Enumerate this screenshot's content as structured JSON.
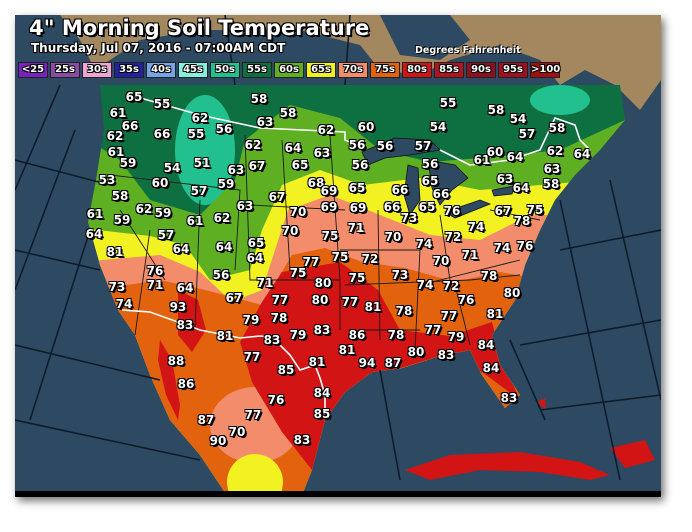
{
  "header": {
    "title": "4\" Morning Soil Temperature",
    "subtitle": "Thursday, Jul 07, 2016 - 07:00AM CDT",
    "units": "Degrees Fahrenheit"
  },
  "legend": [
    {
      "label": "<25",
      "color": "#7a22c0"
    },
    {
      "label": "25s",
      "color": "#8a4aa8"
    },
    {
      "label": "30s",
      "color": "#f0a6d4"
    },
    {
      "label": "35s",
      "color": "#2222a0"
    },
    {
      "label": "40s",
      "color": "#74a4ea"
    },
    {
      "label": "45s",
      "color": "#84f0e0"
    },
    {
      "label": "50s",
      "color": "#22c08e"
    },
    {
      "label": "55s",
      "color": "#0e7040"
    },
    {
      "label": "60s",
      "color": "#5eb022"
    },
    {
      "label": "65s",
      "color": "#f2f222"
    },
    {
      "label": "70s",
      "color": "#f28c6a"
    },
    {
      "label": "75s",
      "color": "#e2620e"
    },
    {
      "label": "80s",
      "color": "#d21414"
    },
    {
      "label": "85s",
      "color": "#b01420"
    },
    {
      "label": "90s",
      "color": "#8e1020"
    },
    {
      "label": "95s",
      "color": "#a01020"
    },
    {
      "label": ">100",
      "color": "#a0100e"
    }
  ],
  "colors": {
    "ocean": "#2d4a62",
    "canada": "#a3885f",
    "border": "#ffffff"
  },
  "stations": [
    "65",
    "55",
    "58",
    "58",
    "63",
    "61",
    "66",
    "62",
    "56",
    "66",
    "55",
    "62",
    "62",
    "61",
    "59",
    "62",
    "64",
    "63",
    "54",
    "51",
    "63",
    "67",
    "65",
    "60",
    "57",
    "59",
    "53",
    "58",
    "68",
    "67",
    "69",
    "62",
    "59",
    "63",
    "70",
    "69",
    "61",
    "59",
    "61",
    "62",
    "71",
    "57",
    "70",
    "75",
    "64",
    "81",
    "64",
    "64",
    "65",
    "64",
    "77",
    "75",
    "55",
    "58",
    "54",
    "60",
    "54",
    "57",
    "58",
    "56",
    "56",
    "57",
    "61",
    "60",
    "64",
    "62",
    "64",
    "56",
    "56",
    "63",
    "65",
    "63",
    "65",
    "66",
    "66",
    "64",
    "58",
    "69",
    "66",
    "65",
    "76",
    "67",
    "75",
    "73",
    "70",
    "74",
    "78",
    "74",
    "72",
    "74",
    "76",
    "72",
    "70",
    "71",
    "76",
    "56",
    "64",
    "73",
    "71",
    "71",
    "75",
    "80",
    "75",
    "74",
    "93",
    "67",
    "77",
    "80",
    "77",
    "83",
    "79",
    "78",
    "83",
    "86",
    "79",
    "81",
    "83",
    "81",
    "77",
    "85",
    "81",
    "88",
    "86",
    "76",
    "84",
    "85",
    "87",
    "77",
    "70",
    "90",
    "83",
    "73",
    "78",
    "74",
    "72",
    "80",
    "81",
    "76",
    "78",
    "77",
    "81",
    "78",
    "77",
    "79",
    "84",
    "94",
    "87",
    "80",
    "83",
    "84",
    "83"
  ]
}
